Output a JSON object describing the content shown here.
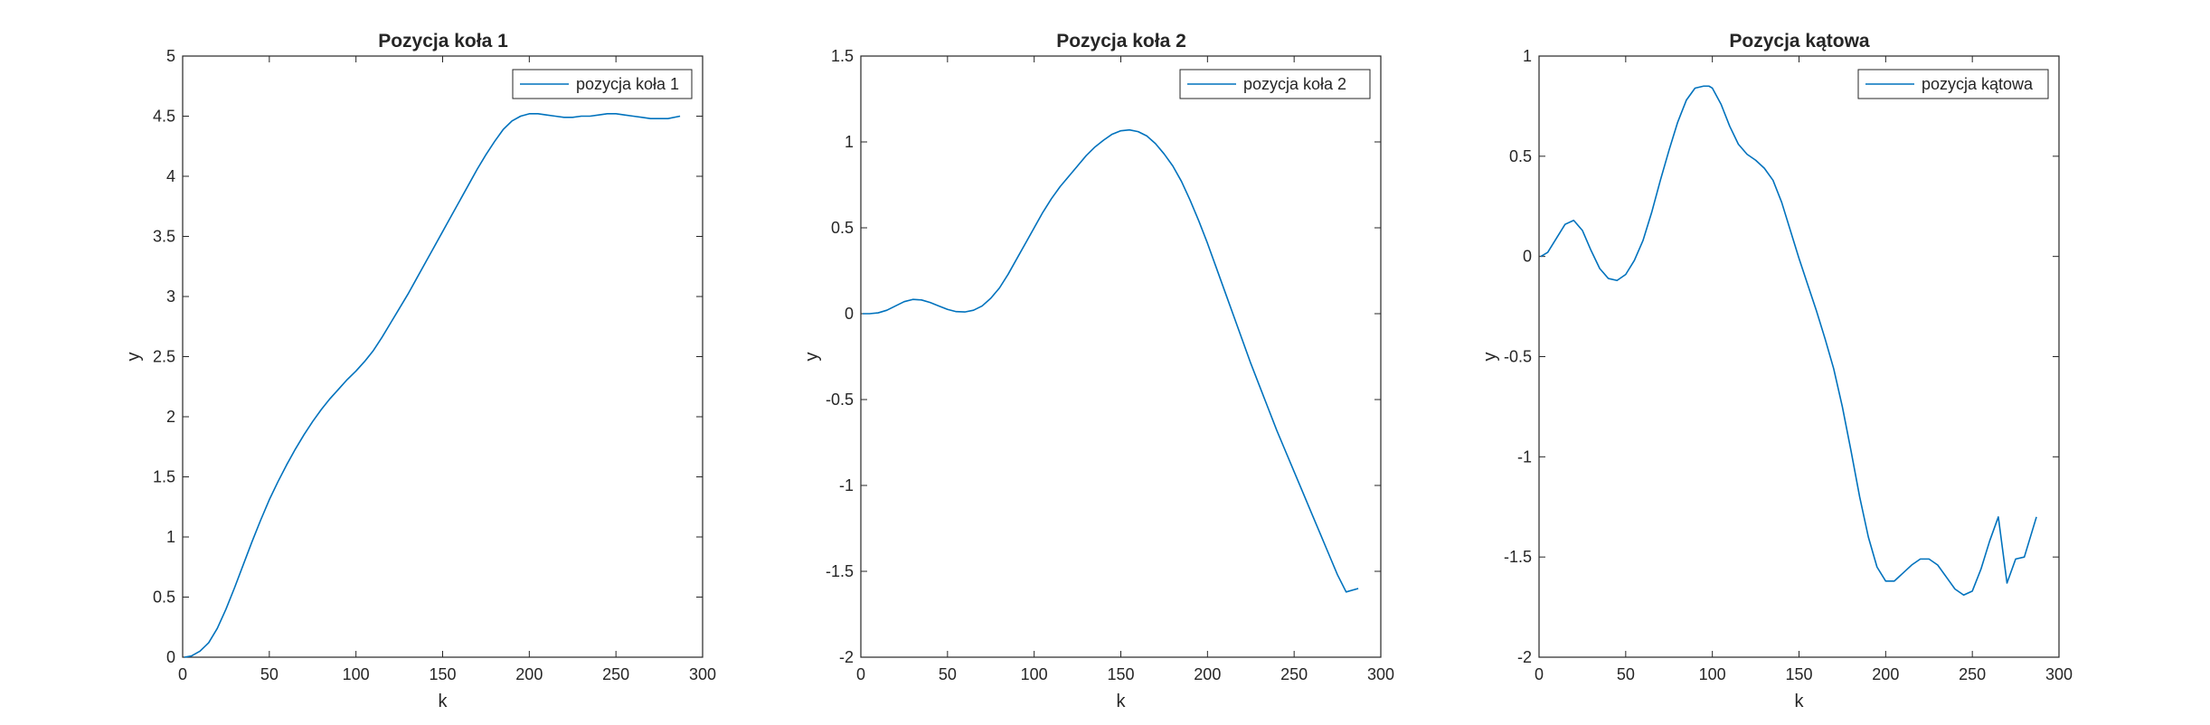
{
  "chart_data": [
    {
      "type": "line",
      "title": "Pozycja koła 1",
      "xlabel": "k",
      "ylabel": "y",
      "xlim": [
        0,
        300
      ],
      "ylim": [
        0,
        5
      ],
      "xticks": [
        "0",
        "50",
        "100",
        "150",
        "200",
        "250",
        "300"
      ],
      "yticks": [
        "0",
        "0.5",
        "1",
        "1.5",
        "2",
        "2.5",
        "3",
        "3.5",
        "4",
        "4.5",
        "5"
      ],
      "grid": false,
      "legend_position": "top-right",
      "series": [
        {
          "name": "pozycja koła 1",
          "color": "#0072BD",
          "x": [
            1,
            5,
            10,
            15,
            20,
            25,
            30,
            35,
            40,
            45,
            50,
            55,
            60,
            65,
            70,
            75,
            80,
            85,
            90,
            95,
            100,
            105,
            110,
            115,
            120,
            125,
            130,
            135,
            140,
            145,
            150,
            155,
            160,
            165,
            170,
            175,
            180,
            185,
            190,
            195,
            200,
            205,
            210,
            215,
            220,
            225,
            230,
            235,
            240,
            245,
            250,
            255,
            260,
            265,
            270,
            275,
            280,
            287
          ],
          "y": [
            0.0,
            0.01,
            0.05,
            0.12,
            0.24,
            0.4,
            0.58,
            0.77,
            0.96,
            1.14,
            1.31,
            1.46,
            1.6,
            1.73,
            1.85,
            1.96,
            2.06,
            2.15,
            2.23,
            2.31,
            2.38,
            2.46,
            2.55,
            2.66,
            2.78,
            2.9,
            3.02,
            3.15,
            3.28,
            3.41,
            3.54,
            3.67,
            3.8,
            3.93,
            4.06,
            4.18,
            4.29,
            4.39,
            4.46,
            4.5,
            4.52,
            4.52,
            4.51,
            4.5,
            4.49,
            4.49,
            4.5,
            4.5,
            4.51,
            4.52,
            4.52,
            4.51,
            4.5,
            4.49,
            4.48,
            4.48,
            4.48,
            4.5
          ]
        }
      ]
    },
    {
      "type": "line",
      "title": "Pozycja koła 2",
      "xlabel": "k",
      "ylabel": "y",
      "xlim": [
        0,
        300
      ],
      "ylim": [
        -2,
        1.5
      ],
      "xticks": [
        "0",
        "50",
        "100",
        "150",
        "200",
        "250",
        "300"
      ],
      "yticks": [
        "-2",
        "-1.5",
        "-1",
        "-0.5",
        "0",
        "0.5",
        "1",
        "1.5"
      ],
      "grid": false,
      "legend_position": "top-right",
      "series": [
        {
          "name": "pozycja koła 2",
          "color": "#0072BD",
          "x": [
            1,
            5,
            10,
            15,
            20,
            25,
            30,
            35,
            40,
            45,
            50,
            55,
            60,
            65,
            70,
            75,
            80,
            85,
            90,
            95,
            100,
            105,
            110,
            115,
            120,
            125,
            130,
            135,
            140,
            145,
            150,
            155,
            160,
            165,
            170,
            175,
            180,
            185,
            190,
            195,
            200,
            205,
            210,
            215,
            220,
            225,
            230,
            235,
            240,
            245,
            250,
            255,
            260,
            265,
            270,
            275,
            280,
            287
          ],
          "y": [
            0.0,
            0.0,
            0.005,
            0.02,
            0.045,
            0.07,
            0.083,
            0.08,
            0.065,
            0.045,
            0.025,
            0.012,
            0.01,
            0.02,
            0.045,
            0.09,
            0.15,
            0.23,
            0.32,
            0.41,
            0.5,
            0.59,
            0.67,
            0.74,
            0.8,
            0.86,
            0.92,
            0.97,
            1.01,
            1.045,
            1.065,
            1.07,
            1.06,
            1.035,
            0.99,
            0.93,
            0.86,
            0.77,
            0.66,
            0.54,
            0.41,
            0.27,
            0.13,
            -0.01,
            -0.15,
            -0.29,
            -0.42,
            -0.55,
            -0.68,
            -0.8,
            -0.92,
            -1.04,
            -1.16,
            -1.28,
            -1.4,
            -1.52,
            -1.62,
            -1.6
          ]
        }
      ]
    },
    {
      "type": "line",
      "title": "Pozycja kątowa",
      "xlabel": "k",
      "ylabel": "y",
      "xlim": [
        0,
        300
      ],
      "ylim": [
        -2,
        1
      ],
      "xticks": [
        "0",
        "50",
        "100",
        "150",
        "200",
        "250",
        "300"
      ],
      "yticks": [
        "-2",
        "-1.5",
        "-1",
        "-0.5",
        "0",
        "0.5",
        "1"
      ],
      "grid": false,
      "legend_position": "top-right",
      "series": [
        {
          "name": "pozycja kątowa",
          "color": "#0072BD",
          "x": [
            1,
            5,
            10,
            15,
            20,
            25,
            30,
            35,
            40,
            45,
            50,
            55,
            60,
            65,
            70,
            75,
            80,
            85,
            90,
            95,
            98,
            100,
            105,
            110,
            115,
            120,
            125,
            130,
            135,
            140,
            145,
            150,
            155,
            160,
            165,
            170,
            175,
            180,
            185,
            190,
            195,
            200,
            205,
            210,
            215,
            220,
            225,
            230,
            235,
            240,
            245,
            250,
            255,
            260,
            265,
            270,
            275,
            280,
            287
          ],
          "y": [
            0.0,
            0.02,
            0.09,
            0.16,
            0.18,
            0.13,
            0.03,
            -0.06,
            -0.11,
            -0.12,
            -0.09,
            -0.02,
            0.08,
            0.22,
            0.38,
            0.53,
            0.67,
            0.78,
            0.84,
            0.85,
            0.85,
            0.84,
            0.76,
            0.65,
            0.56,
            0.51,
            0.48,
            0.44,
            0.38,
            0.27,
            0.13,
            -0.01,
            -0.14,
            -0.27,
            -0.41,
            -0.56,
            -0.75,
            -0.97,
            -1.2,
            -1.4,
            -1.55,
            -1.62,
            -1.62,
            -1.58,
            -1.54,
            -1.51,
            -1.51,
            -1.54,
            -1.6,
            -1.66,
            -1.69,
            -1.67,
            -1.56,
            -1.42,
            -1.3,
            -1.63,
            -1.51,
            -1.5,
            -1.3
          ]
        }
      ]
    }
  ]
}
